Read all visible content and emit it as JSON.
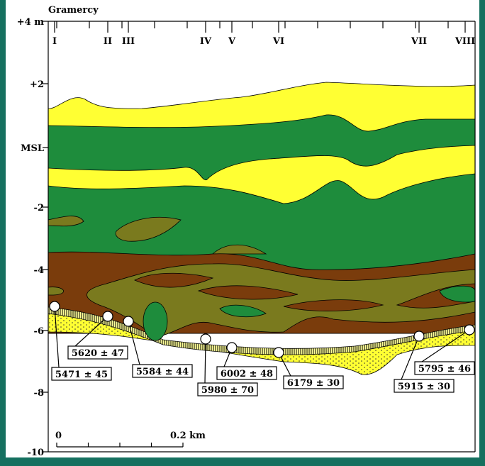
{
  "title": "Gramercy",
  "elevation_labels": [
    "+4 m",
    "+2",
    "MSL",
    "-2",
    "-4",
    "-6",
    "-8",
    "-10"
  ],
  "sections": [
    "I",
    "II",
    "III",
    "IV",
    "V",
    "VI",
    "VII",
    "VIII"
  ],
  "dates": [
    "5471 ± 45",
    "5620 ± 47",
    "5584 ± 44",
    "5980 ± 70",
    "6002 ± 48",
    "6179 ± 30",
    "5915 ± 30",
    "5795 ± 46"
  ],
  "scale": {
    "start": "0",
    "end": "0.2 km"
  }
}
